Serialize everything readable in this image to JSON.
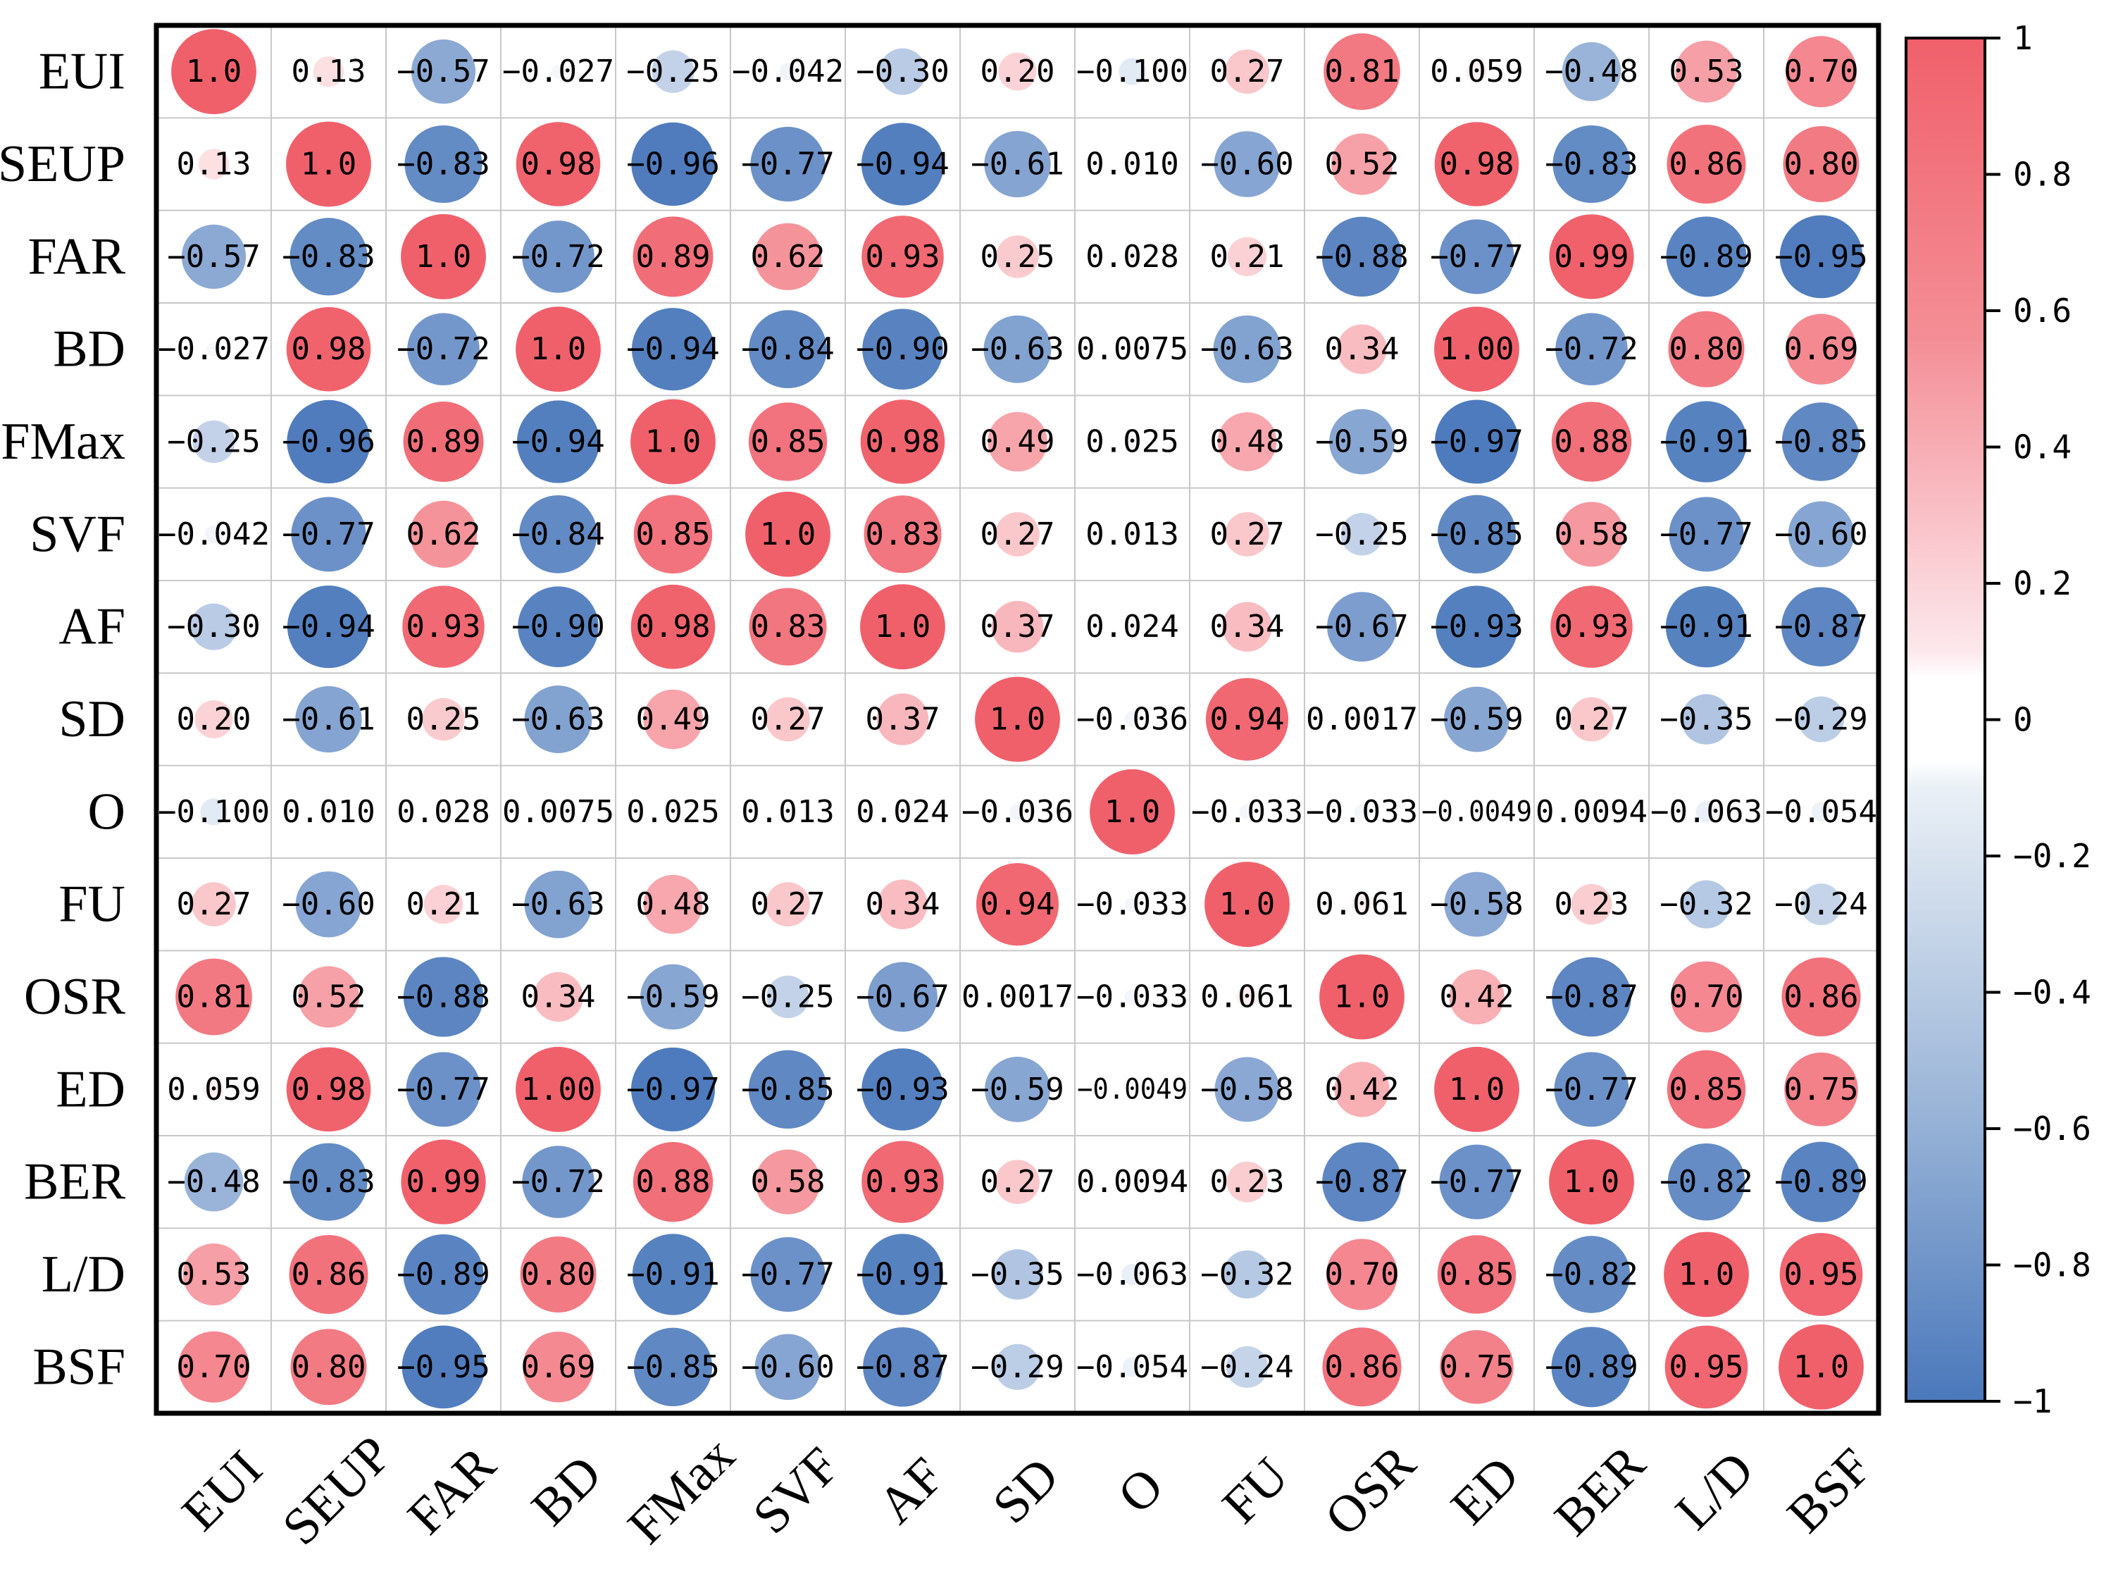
{
  "chart_data": {
    "type": "heatmap",
    "style": "circle-correlation-matrix",
    "title": "",
    "variables": [
      "EUI",
      "SEUP",
      "FAR",
      "BD",
      "FMax",
      "SVF",
      "AF",
      "SD",
      "O",
      "FU",
      "OSR",
      "ED",
      "BER",
      "L/D",
      "BSF"
    ],
    "values": [
      [
        1.0,
        0.13,
        -0.57,
        -0.027,
        -0.25,
        -0.042,
        -0.3,
        0.2,
        -0.1,
        0.27,
        0.81,
        0.059,
        -0.48,
        0.53,
        0.7
      ],
      [
        0.13,
        1.0,
        -0.83,
        0.98,
        -0.96,
        -0.77,
        -0.94,
        -0.61,
        0.01,
        -0.6,
        0.52,
        0.98,
        -0.83,
        0.86,
        0.8
      ],
      [
        -0.57,
        -0.83,
        1.0,
        -0.72,
        0.89,
        0.62,
        0.93,
        0.25,
        0.028,
        0.21,
        -0.88,
        -0.77,
        0.99,
        -0.89,
        -0.95
      ],
      [
        -0.027,
        0.98,
        -0.72,
        1.0,
        -0.94,
        -0.84,
        -0.9,
        -0.63,
        0.0075,
        -0.63,
        0.34,
        1.0,
        -0.72,
        0.8,
        0.69
      ],
      [
        -0.25,
        -0.96,
        0.89,
        -0.94,
        1.0,
        0.85,
        0.98,
        0.49,
        0.025,
        0.48,
        -0.59,
        -0.97,
        0.88,
        -0.91,
        -0.85
      ],
      [
        -0.042,
        -0.77,
        0.62,
        -0.84,
        0.85,
        1.0,
        0.83,
        0.27,
        0.013,
        0.27,
        -0.25,
        -0.85,
        0.58,
        -0.77,
        -0.6
      ],
      [
        -0.3,
        -0.94,
        0.93,
        -0.9,
        0.98,
        0.83,
        1.0,
        0.37,
        0.024,
        0.34,
        -0.67,
        -0.93,
        0.93,
        -0.91,
        -0.87
      ],
      [
        0.2,
        -0.61,
        0.25,
        -0.63,
        0.49,
        0.27,
        0.37,
        1.0,
        -0.036,
        0.94,
        0.0017,
        -0.59,
        0.27,
        -0.35,
        -0.29
      ],
      [
        -0.1,
        0.01,
        0.028,
        0.0075,
        0.025,
        0.013,
        0.024,
        -0.036,
        1.0,
        -0.033,
        -0.033,
        -0.0049,
        0.0094,
        -0.063,
        -0.054
      ],
      [
        0.27,
        -0.6,
        0.21,
        -0.63,
        0.48,
        0.27,
        0.34,
        0.94,
        -0.033,
        1.0,
        0.061,
        -0.58,
        0.23,
        -0.32,
        -0.24
      ],
      [
        0.81,
        0.52,
        -0.88,
        0.34,
        -0.59,
        -0.25,
        -0.67,
        0.0017,
        -0.033,
        0.061,
        1.0,
        0.42,
        -0.87,
        0.7,
        0.86
      ],
      [
        0.059,
        0.98,
        -0.77,
        1.0,
        -0.97,
        -0.85,
        -0.93,
        -0.59,
        -0.0049,
        -0.58,
        0.42,
        1.0,
        -0.77,
        0.85,
        0.75
      ],
      [
        -0.48,
        -0.83,
        0.99,
        -0.72,
        0.88,
        0.58,
        0.93,
        0.27,
        0.0094,
        0.23,
        -0.87,
        -0.77,
        1.0,
        -0.82,
        -0.89
      ],
      [
        0.53,
        0.86,
        -0.89,
        0.8,
        -0.91,
        -0.77,
        -0.91,
        -0.35,
        -0.063,
        -0.32,
        0.7,
        0.85,
        -0.82,
        1.0,
        0.95
      ],
      [
        0.7,
        0.8,
        -0.95,
        0.69,
        -0.85,
        -0.6,
        -0.87,
        -0.29,
        -0.054,
        -0.24,
        0.86,
        0.75,
        -0.89,
        0.95,
        1.0
      ]
    ],
    "value_labels": [
      [
        "1.0",
        "0.13",
        "−0.57",
        "−0.027",
        "−0.25",
        "−0.042",
        "−0.30",
        "0.20",
        "−0.100",
        "0.27",
        "0.81",
        "0.059",
        "−0.48",
        "0.53",
        "0.70"
      ],
      [
        "0.13",
        "1.0",
        "−0.83",
        "0.98",
        "−0.96",
        "−0.77",
        "−0.94",
        "−0.61",
        "0.010",
        "−0.60",
        "0.52",
        "0.98",
        "−0.83",
        "0.86",
        "0.80"
      ],
      [
        "−0.57",
        "−0.83",
        "1.0",
        "−0.72",
        "0.89",
        "0.62",
        "0.93",
        "0.25",
        "0.028",
        "0.21",
        "−0.88",
        "−0.77",
        "0.99",
        "−0.89",
        "−0.95"
      ],
      [
        "−0.027",
        "0.98",
        "−0.72",
        "1.0",
        "−0.94",
        "−0.84",
        "−0.90",
        "−0.63",
        "0.0075",
        "−0.63",
        "0.34",
        "1.00",
        "−0.72",
        "0.80",
        "0.69"
      ],
      [
        "−0.25",
        "−0.96",
        "0.89",
        "−0.94",
        "1.0",
        "0.85",
        "0.98",
        "0.49",
        "0.025",
        "0.48",
        "−0.59",
        "−0.97",
        "0.88",
        "−0.91",
        "−0.85"
      ],
      [
        "−0.042",
        "−0.77",
        "0.62",
        "−0.84",
        "0.85",
        "1.0",
        "0.83",
        "0.27",
        "0.013",
        "0.27",
        "−0.25",
        "−0.85",
        "0.58",
        "−0.77",
        "−0.60"
      ],
      [
        "−0.30",
        "−0.94",
        "0.93",
        "−0.90",
        "0.98",
        "0.83",
        "1.0",
        "0.37",
        "0.024",
        "0.34",
        "−0.67",
        "−0.93",
        "0.93",
        "−0.91",
        "−0.87"
      ],
      [
        "0.20",
        "−0.61",
        "0.25",
        "−0.63",
        "0.49",
        "0.27",
        "0.37",
        "1.0",
        "−0.036",
        "0.94",
        "0.0017",
        "−0.59",
        "0.27",
        "−0.35",
        "−0.29"
      ],
      [
        "−0.100",
        "0.010",
        "0.028",
        "0.0075",
        "0.025",
        "0.013",
        "0.024",
        "−0.036",
        "1.0",
        "−0.033",
        "−0.033",
        "−0.0049",
        "0.0094",
        "−0.063",
        "−0.054"
      ],
      [
        "0.27",
        "−0.60",
        "0.21",
        "−0.63",
        "0.48",
        "0.27",
        "0.34",
        "0.94",
        "−0.033",
        "1.0",
        "0.061",
        "−0.58",
        "0.23",
        "−0.32",
        "−0.24"
      ],
      [
        "0.81",
        "0.52",
        "−0.88",
        "0.34",
        "−0.59",
        "−0.25",
        "−0.67",
        "0.0017",
        "−0.033",
        "0.061",
        "1.0",
        "0.42",
        "−0.87",
        "0.70",
        "0.86"
      ],
      [
        "0.059",
        "0.98",
        "−0.77",
        "1.00",
        "−0.97",
        "−0.85",
        "−0.93",
        "−0.59",
        "−0.0049",
        "−0.58",
        "0.42",
        "1.0",
        "−0.77",
        "0.85",
        "0.75"
      ],
      [
        "−0.48",
        "−0.83",
        "0.99",
        "−0.72",
        "0.88",
        "0.58",
        "0.93",
        "0.27",
        "0.0094",
        "0.23",
        "−0.87",
        "−0.77",
        "1.0",
        "−0.82",
        "−0.89"
      ],
      [
        "0.53",
        "0.86",
        "−0.89",
        "0.80",
        "−0.91",
        "−0.77",
        "−0.91",
        "−0.35",
        "−0.063",
        "−0.32",
        "0.70",
        "0.85",
        "−0.82",
        "1.0",
        "0.95"
      ],
      [
        "0.70",
        "0.80",
        "−0.95",
        "0.69",
        "−0.85",
        "−0.60",
        "−0.87",
        "−0.29",
        "−0.054",
        "−0.24",
        "0.86",
        "0.75",
        "−0.89",
        "0.95",
        "1.0"
      ]
    ],
    "value_range": [
      -1,
      1
    ],
    "colorbar": {
      "ticks": [
        1,
        0.8,
        0.6,
        0.4,
        0.2,
        0,
        -0.2,
        -0.4,
        -0.6,
        -0.8,
        -1
      ],
      "tick_labels": [
        "1",
        "0.8",
        "0.6",
        "0.4",
        "0.2",
        "0",
        "−0.2",
        "−0.4",
        "−0.6",
        "−0.8",
        "−1"
      ],
      "placement": "right"
    },
    "colors": {
      "positive": "#f0606b",
      "negative": "#4a78bb",
      "neutral": "#ffffff",
      "grid": "#c8c8c8",
      "frame": "#000000"
    },
    "grid": true,
    "xlabel": "",
    "ylabel": ""
  }
}
